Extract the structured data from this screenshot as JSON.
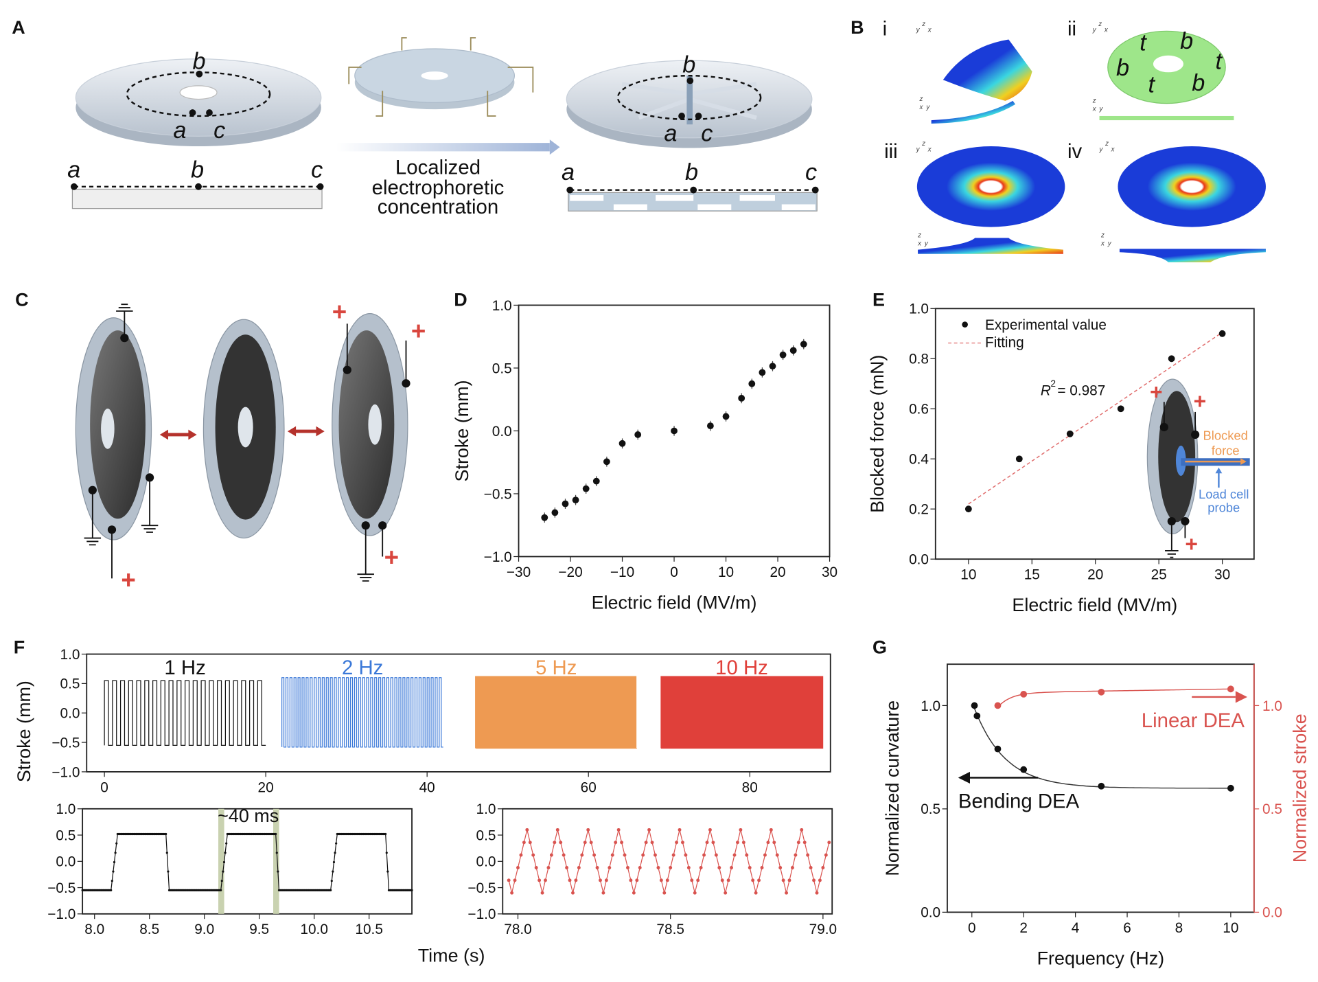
{
  "panel_labels": {
    "A": "A",
    "B": "B",
    "C": "C",
    "D": "D",
    "E": "E",
    "F": "F",
    "G": "G"
  },
  "panel_A": {
    "point_labels": {
      "a": "a",
      "b": "b",
      "c": "c"
    },
    "process_text": [
      "Localized",
      "electrophoretic",
      "concentration"
    ]
  },
  "panel_B": {
    "subpanels": [
      "i",
      "ii",
      "iii",
      "iv"
    ],
    "segment_labels": [
      "t",
      "b",
      "t",
      "b",
      "t",
      "b"
    ],
    "triad_iso": [
      "y",
      "z",
      "x"
    ],
    "triad_side": [
      "z",
      "x",
      "y"
    ],
    "colors": {
      "low": "#1a3cd8",
      "mid": "#3ad6e0",
      "high": "#e8361a",
      "unactuated": "#9ee68a"
    }
  },
  "panel_C": {
    "plus_sign": "+",
    "arrow_color": "#b5322c"
  },
  "panel_E_inset": {
    "blocked_force": [
      "Blocked",
      "force"
    ],
    "load_cell": [
      "Load cell",
      "probe"
    ],
    "plus_sign": "+"
  },
  "chart_data": [
    {
      "panel": "D",
      "type": "scatter",
      "xlabel": "Electric field (MV/m)",
      "ylabel": "Stroke (mm)",
      "xlim": [
        -30,
        30
      ],
      "ylim": [
        -1,
        1
      ],
      "xticks": [
        "−30",
        "−20",
        "−10",
        "0",
        "10",
        "20",
        "30"
      ],
      "yticks": [
        "−1.0",
        "−0.5",
        "0.0",
        "0.5",
        "1.0"
      ],
      "x": [
        -25,
        -23,
        -21,
        -19,
        -17,
        -15,
        -13,
        -10,
        -7,
        0,
        7,
        10,
        13,
        15,
        17,
        19,
        21,
        23,
        25
      ],
      "y": [
        -0.69,
        -0.65,
        -0.58,
        -0.55,
        -0.46,
        -0.4,
        -0.245,
        -0.1,
        -0.03,
        0,
        0.04,
        0.115,
        0.26,
        0.375,
        0.465,
        0.515,
        0.605,
        0.64,
        0.69
      ],
      "color": "#111111"
    },
    {
      "panel": "E",
      "type": "scatter",
      "xlabel": "Electric field (MV/m)",
      "ylabel": "Blocked force (mN)",
      "xlim": [
        7.4,
        32.5
      ],
      "ylim": [
        0,
        1
      ],
      "xticks": [
        "10",
        "15",
        "20",
        "25",
        "30"
      ],
      "yticks": [
        "0.0",
        "0.2",
        "0.4",
        "0.6",
        "0.8",
        "1.0"
      ],
      "series": [
        {
          "name": "Experimental value",
          "x": [
            10,
            14,
            18,
            22,
            26,
            30
          ],
          "y": [
            0.2,
            0.4,
            0.5,
            0.6,
            0.8,
            0.9
          ]
        },
        {
          "name": "Fitting",
          "x": [
            10,
            30
          ],
          "y": [
            0.22,
            0.905
          ],
          "style": "dashed",
          "color": "#e06a6a"
        }
      ],
      "annotation": "= 0.987",
      "annotation_prefix": "R",
      "annotation_sup": "2",
      "legend": "top-left"
    },
    {
      "panel": "F",
      "type": "line",
      "ylabel": "Stroke (mm)",
      "xlim": [
        -2.2,
        90
      ],
      "ylim": [
        -1,
        1
      ],
      "xticks": [
        "0",
        "20",
        "40",
        "60",
        "80"
      ],
      "yticks": [
        "−1.0",
        "−0.5",
        "0.0",
        "0.5",
        "1.0"
      ],
      "series": [
        {
          "name": "1 Hz",
          "frequency_hz": 1,
          "t_start": 0,
          "t_end": 20,
          "high": 0.55,
          "low": -0.55,
          "color": "#111111"
        },
        {
          "name": "2 Hz",
          "frequency_hz": 2,
          "t_start": 22,
          "t_end": 42,
          "high": 0.6,
          "low": -0.58,
          "color": "#3a78d8"
        },
        {
          "name": "5 Hz",
          "frequency_hz": 5,
          "t_start": 46,
          "t_end": 66,
          "high": 0.62,
          "low": -0.6,
          "color": "#ee9a52"
        },
        {
          "name": "10 Hz",
          "frequency_hz": 10,
          "t_start": 69,
          "t_end": 89,
          "high": 0.62,
          "low": -0.6,
          "color": "#e0403a"
        }
      ]
    },
    {
      "panel": "F",
      "type": "line",
      "xlabel": "Time (s)",
      "xlim": [
        7.89,
        10.89
      ],
      "ylim": [
        -1,
        1
      ],
      "xticks": [
        "8.0",
        "8.5",
        "9.0",
        "9.5",
        "10.0",
        "10.5"
      ],
      "yticks": [
        "−1.0",
        "−0.5",
        "0.0",
        "0.5",
        "1.0"
      ],
      "rise_times": [
        8.15,
        9.15,
        10.15
      ],
      "fall_times": [
        8.65,
        9.65,
        10.65
      ],
      "high": 0.52,
      "low": -0.55,
      "highlight_times": [
        9.15,
        9.65
      ],
      "annotation": "~40 ms",
      "color": "#111111",
      "highlight_color": "#c9d2b0"
    },
    {
      "panel": "F",
      "type": "line",
      "xlim": [
        77.95,
        79.03
      ],
      "ylim": [
        -1,
        1
      ],
      "xticks": [
        "78.0",
        "78.5",
        "79.0"
      ],
      "yticks": [
        "−1.0",
        "−0.5",
        "0.0",
        "0.5",
        "1.0"
      ],
      "period_s": 0.1,
      "max": 0.6,
      "min": -0.6,
      "first_peak": 78.03,
      "color": "#d9534f"
    },
    {
      "panel": "G",
      "type": "scatter",
      "xlabel": "Frequency (Hz)",
      "ylabel": "Normalized curvature",
      "ylabel_right": "Normalized stroke",
      "xlim": [
        -0.95,
        10.9
      ],
      "ylim": [
        0,
        1.2
      ],
      "ylim_right": [
        0,
        1.2
      ],
      "xticks": [
        "0",
        "2",
        "4",
        "6",
        "8",
        "10"
      ],
      "yticks": [
        "0.0",
        "0.5",
        "1.0"
      ],
      "yticks_right": [
        "0.0",
        "0.5",
        "1.0"
      ],
      "series": [
        {
          "name": "Bending DEA",
          "axis": "left",
          "x": [
            0.1,
            0.2,
            1,
            2,
            5,
            10
          ],
          "y": [
            1.0,
            0.95,
            0.79,
            0.69,
            0.61,
            0.6
          ],
          "color": "#111111"
        },
        {
          "name": "Linear DEA",
          "axis": "right",
          "x": [
            1,
            2,
            5,
            10
          ],
          "y": [
            1.0,
            1.055,
            1.065,
            1.08
          ],
          "color": "#d9534f"
        }
      ]
    }
  ]
}
